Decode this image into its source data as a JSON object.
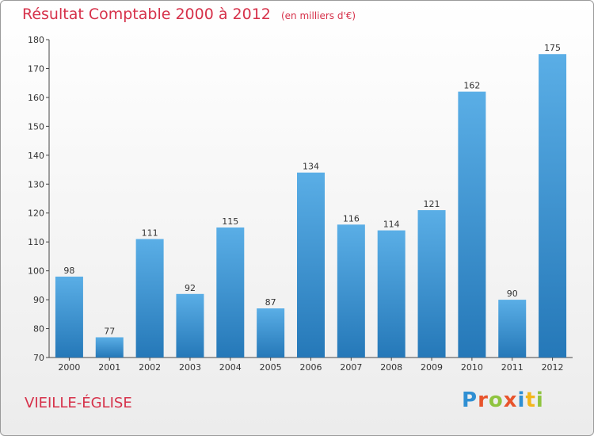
{
  "header": {
    "title": "Résultat Comptable 2000 à 2012",
    "unit": "(en milliers d'€)"
  },
  "footer": {
    "place": "VIEILLE-ÉGLISE",
    "logo_letters": [
      "P",
      "r",
      "o",
      "x",
      "i",
      "t",
      "i"
    ],
    "logo_colors": [
      "#2f8fd3",
      "#e8542c",
      "#8fc43f",
      "#e8542c",
      "#2f8fd3",
      "#f2b61b",
      "#8fc43f"
    ]
  },
  "colors": {
    "bar_top": "#5aaee6",
    "bar_bottom": "#2578b8",
    "title": "#d6314a",
    "axis": "#444444"
  },
  "chart_data": {
    "type": "bar",
    "title": "Résultat Comptable 2000 à 2012",
    "ylabel": "(en milliers d'€)",
    "xlabel": "",
    "categories": [
      "2000",
      "2001",
      "2002",
      "2003",
      "2004",
      "2005",
      "2006",
      "2007",
      "2008",
      "2009",
      "2010",
      "2011",
      "2012"
    ],
    "values": [
      98,
      77,
      111,
      92,
      115,
      87,
      134,
      116,
      114,
      121,
      162,
      90,
      175
    ],
    "ylim": [
      70,
      180
    ],
    "yticks": [
      70,
      80,
      90,
      100,
      110,
      120,
      130,
      140,
      150,
      160,
      170,
      180
    ],
    "grid": false
  }
}
